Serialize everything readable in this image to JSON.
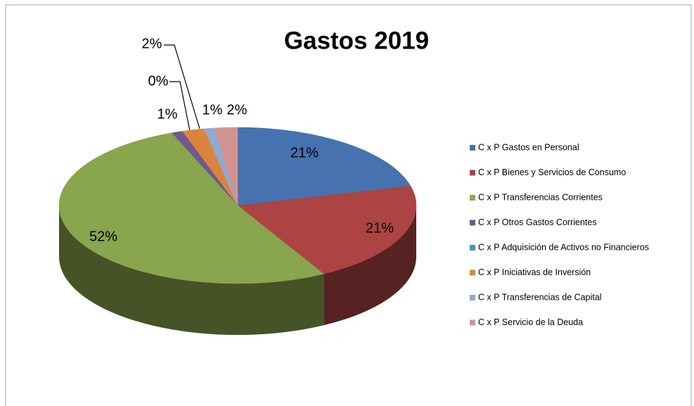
{
  "chart_data": {
    "type": "pie",
    "title": "Gastos 2019",
    "categories": [
      "C x P Gastos en Personal",
      "C x P Bienes y Servicios de Consumo",
      "C x P Transferencias Corrientes",
      "C x P Otros Gastos Corrientes",
      "C x P Adquisición de Activos no Financieros",
      "C x P Iniciativas de Inversión",
      "C x P Transferencias de Capital",
      "C x P Servicio de la Deuda"
    ],
    "values": [
      21,
      21,
      52,
      1,
      0,
      2,
      1,
      2
    ],
    "value_labels": [
      "21%",
      "21%",
      "52%",
      "1%",
      "0%",
      "2%",
      "1%",
      "2%"
    ],
    "colors": [
      "#4672b0",
      "#ab4443",
      "#89a54e",
      "#71588f",
      "#4298af",
      "#db843d",
      "#93a9cf",
      "#d19392"
    ],
    "legend": "right"
  }
}
